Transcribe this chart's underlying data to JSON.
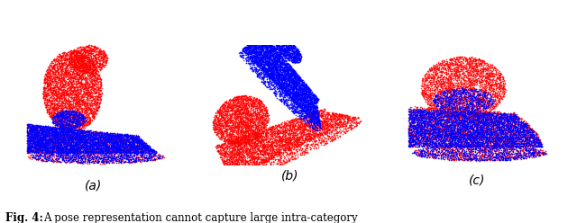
{
  "fig_label": "Fig. 4:",
  "fig_caption": "A pose representation cannot capture large intra-category",
  "subcaptions": [
    "(a)",
    "(b)",
    "(c)"
  ],
  "background_color": "#ffffff",
  "red_color": "#ff0000",
  "blue_color": "#0000ff",
  "figsize": [
    6.4,
    2.48
  ],
  "dpi": 100,
  "n_points": 8000
}
